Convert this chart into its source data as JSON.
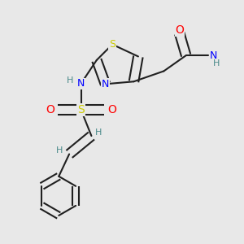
{
  "bg_color": "#e8e8e8",
  "atom_colors": {
    "C": "#202020",
    "N": "#0000ff",
    "O": "#ff0000",
    "S": "#cccc00",
    "H": "#4a8a8a"
  },
  "bond_color": "#202020",
  "fig_width": 3.0,
  "fig_height": 3.0,
  "dpi": 100
}
